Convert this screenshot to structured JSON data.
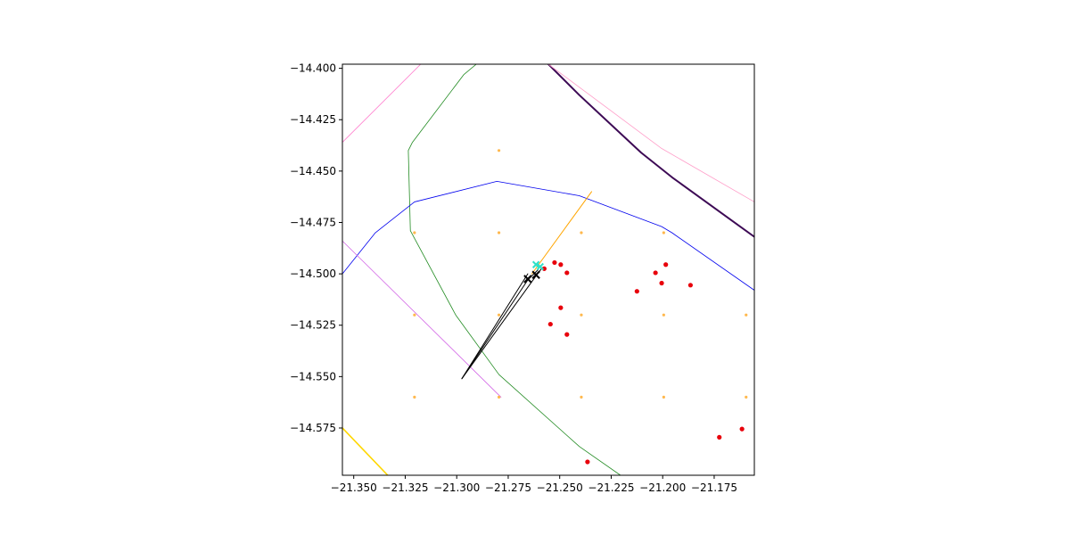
{
  "chart_data": {
    "type": "scatter",
    "title": "",
    "xlabel": "",
    "ylabel": "",
    "xlim": [
      -21.3555,
      -21.1555
    ],
    "ylim": [
      -14.598,
      -14.398
    ],
    "grid": false,
    "x_ticks": [
      -21.35,
      -21.325,
      -21.3,
      -21.275,
      -21.25,
      -21.225,
      -21.2,
      -21.175
    ],
    "x_tick_labels": [
      "−21.350",
      "−21.325",
      "−21.300",
      "−21.275",
      "−21.250",
      "−21.225",
      "−21.200",
      "−21.175"
    ],
    "y_ticks": [
      -14.4,
      -14.425,
      -14.45,
      -14.475,
      -14.5,
      -14.525,
      -14.55,
      -14.575
    ],
    "y_tick_labels": [
      "−14.400",
      "−14.425",
      "−14.450",
      "−14.475",
      "−14.500",
      "−14.525",
      "−14.550",
      "−14.575"
    ],
    "lines": [
      {
        "color": "#3d0a55",
        "width": 2.0,
        "points": [
          [
            -21.2555,
            -14.398
          ],
          [
            -21.2405,
            -14.413
          ],
          [
            -21.2105,
            -14.441
          ],
          [
            -21.1955,
            -14.453
          ],
          [
            -21.1555,
            -14.482
          ]
        ]
      },
      {
        "color": "#ff9ec9",
        "width": 0.8,
        "points": [
          [
            -21.2555,
            -14.398
          ],
          [
            -21.2005,
            -14.439
          ],
          [
            -21.1555,
            -14.465
          ]
        ]
      },
      {
        "color": "#ff7acc",
        "width": 0.8,
        "points": [
          [
            -21.3555,
            -14.436
          ],
          [
            -21.3175,
            -14.398
          ]
        ]
      },
      {
        "color": "#228b22",
        "width": 0.8,
        "points": [
          [
            -21.2905,
            -14.398
          ],
          [
            -21.2965,
            -14.403
          ],
          [
            -21.3215,
            -14.436
          ],
          [
            -21.3235,
            -14.44
          ],
          [
            -21.3225,
            -14.479
          ],
          [
            -21.3005,
            -14.52
          ],
          [
            -21.2795,
            -14.549
          ],
          [
            -21.2405,
            -14.584
          ],
          [
            -21.2205,
            -14.598
          ]
        ]
      },
      {
        "color": "#0000ee",
        "width": 0.8,
        "points": [
          [
            -21.3555,
            -14.5
          ],
          [
            -21.3395,
            -14.48
          ],
          [
            -21.3205,
            -14.465
          ],
          [
            -21.2805,
            -14.455
          ],
          [
            -21.2405,
            -14.462
          ],
          [
            -21.2005,
            -14.477
          ],
          [
            -21.1955,
            -14.48
          ],
          [
            -21.1555,
            -14.508
          ]
        ]
      },
      {
        "color": "#d264e6",
        "width": 0.8,
        "points": [
          [
            -21.3555,
            -14.484
          ],
          [
            -21.2785,
            -14.56
          ]
        ]
      },
      {
        "color": "#ffd700",
        "width": 1.6,
        "points": [
          [
            -21.3555,
            -14.575
          ],
          [
            -21.3335,
            -14.598
          ]
        ]
      },
      {
        "color": "#ffa500",
        "width": 1.0,
        "points": [
          [
            -21.2635,
            -14.5
          ],
          [
            -21.2345,
            -14.46
          ]
        ]
      },
      {
        "color": "#000000",
        "width": 1.0,
        "points": [
          [
            -21.2975,
            -14.551
          ],
          [
            -21.2655,
            -14.503
          ],
          [
            -21.2605,
            -14.498
          ]
        ]
      },
      {
        "color": "#000000",
        "width": 1.0,
        "points": [
          [
            -21.2975,
            -14.551
          ],
          [
            -21.2615,
            -14.501
          ],
          [
            -21.2585,
            -14.497
          ]
        ]
      },
      {
        "color": "#000000",
        "width": 1.0,
        "points": [
          [
            -21.2975,
            -14.551
          ],
          [
            -21.2655,
            -14.5
          ]
        ]
      }
    ],
    "markers": [
      {
        "name": "grid-points",
        "color": "#ffb84d",
        "shape": "dot",
        "size": 1.6,
        "points": [
          [
            -21.2795,
            -14.44
          ],
          [
            -21.3205,
            -14.48
          ],
          [
            -21.2795,
            -14.48
          ],
          [
            -21.2395,
            -14.48
          ],
          [
            -21.1995,
            -14.48
          ],
          [
            -21.3205,
            -14.52
          ],
          [
            -21.2795,
            -14.52
          ],
          [
            -21.2395,
            -14.52
          ],
          [
            -21.1995,
            -14.52
          ],
          [
            -21.1595,
            -14.52
          ],
          [
            -21.3205,
            -14.56
          ],
          [
            -21.2795,
            -14.56
          ],
          [
            -21.2395,
            -14.56
          ],
          [
            -21.1995,
            -14.56
          ],
          [
            -21.1595,
            -14.56
          ]
        ]
      },
      {
        "name": "red-points",
        "color": "#e8000b",
        "shape": "dot",
        "size": 2.6,
        "points": [
          [
            -21.2525,
            -14.4945
          ],
          [
            -21.2495,
            -14.4955
          ],
          [
            -21.2575,
            -14.4975
          ],
          [
            -21.2465,
            -14.4995
          ],
          [
            -21.2035,
            -14.4995
          ],
          [
            -21.1985,
            -14.4955
          ],
          [
            -21.2005,
            -14.5045
          ],
          [
            -21.1865,
            -14.5055
          ],
          [
            -21.2125,
            -14.5085
          ],
          [
            -21.2495,
            -14.5165
          ],
          [
            -21.2545,
            -14.5245
          ],
          [
            -21.2465,
            -14.5295
          ],
          [
            -21.1725,
            -14.5795
          ],
          [
            -21.1615,
            -14.5755
          ],
          [
            -21.2365,
            -14.5915
          ]
        ]
      },
      {
        "name": "cyan-points",
        "color": "#2ee0c8",
        "shape": "x",
        "size": 3.5,
        "points": [
          [
            -21.2615,
            -14.4955
          ],
          [
            -21.2595,
            -14.4965
          ]
        ]
      },
      {
        "name": "black-crosses",
        "color": "#000000",
        "shape": "x",
        "size": 4.0,
        "points": [
          [
            -21.2655,
            -14.5025
          ],
          [
            -21.2615,
            -14.5005
          ]
        ]
      }
    ]
  }
}
